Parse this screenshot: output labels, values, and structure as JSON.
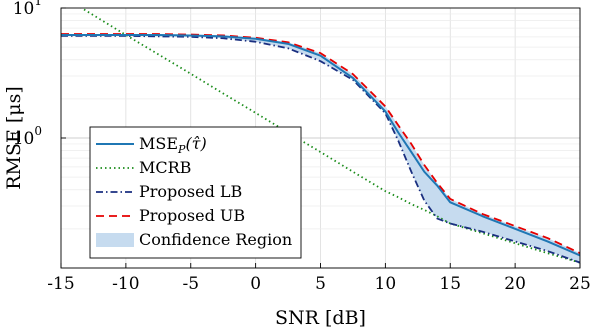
{
  "chart_data": {
    "type": "line",
    "xlabel": "SNR [dB]",
    "ylabel": "RMSE [μs]",
    "xlim": [
      -15,
      25
    ],
    "ylim": [
      0.1,
      10
    ],
    "yscale": "log",
    "grid": true,
    "legend_position": "bottom-left",
    "x_ticks": [
      -15,
      -10,
      -5,
      0,
      5,
      10,
      15,
      20,
      25
    ],
    "x_tick_labels": [
      "-15",
      "-10",
      "-5",
      "0",
      "5",
      "10",
      "15",
      "20",
      "25"
    ],
    "y_ticks": [
      {
        "value": 1,
        "base": "10",
        "exp": "0"
      },
      {
        "value": 10,
        "base": "10",
        "exp": "1"
      }
    ],
    "x": [
      -15,
      -12.5,
      -10,
      -7.5,
      -5,
      -2.5,
      0,
      2.5,
      5,
      7.5,
      10,
      11,
      12,
      13,
      14,
      15,
      17.5,
      20,
      22.5,
      25
    ],
    "series": [
      {
        "name": "MSE",
        "name_sub": "P",
        "name_arg": "(τ̂)",
        "color": "#1f77b4",
        "dash": "solid",
        "values": [
          6.2,
          6.2,
          6.2,
          6.2,
          6.15,
          6.05,
          5.8,
          5.3,
          4.3,
          2.9,
          1.6,
          1.1,
          0.78,
          0.55,
          0.43,
          0.32,
          0.25,
          0.2,
          0.16,
          0.125
        ]
      },
      {
        "name": "MCRB",
        "color": "#1a8c1a",
        "dash": "dotted",
        "values": [
          12.5,
          8.8,
          6.2,
          4.4,
          3.12,
          2.2,
          1.56,
          1.1,
          0.78,
          0.55,
          0.39,
          0.35,
          0.31,
          0.28,
          0.25,
          0.22,
          0.185,
          0.155,
          0.13,
          0.11
        ]
      },
      {
        "name": "Proposed LB",
        "color": "#1a2f80",
        "dash": "dashdot",
        "values": [
          6.1,
          6.1,
          6.1,
          6.05,
          6.0,
          5.85,
          5.5,
          4.9,
          3.9,
          2.8,
          1.55,
          0.95,
          0.55,
          0.33,
          0.24,
          0.22,
          0.19,
          0.16,
          0.135,
          0.11
        ]
      },
      {
        "name": "Proposed UB",
        "color": "#e60000",
        "dash": "dashed",
        "values": [
          6.3,
          6.3,
          6.3,
          6.3,
          6.25,
          6.15,
          5.9,
          5.45,
          4.5,
          3.1,
          1.75,
          1.25,
          0.9,
          0.62,
          0.45,
          0.34,
          0.26,
          0.21,
          0.17,
          0.13
        ]
      }
    ],
    "band": {
      "name": "Confidence Region",
      "color": "#c6dbef",
      "lower_series": "Proposed LB",
      "upper_series": "Proposed UB"
    }
  }
}
